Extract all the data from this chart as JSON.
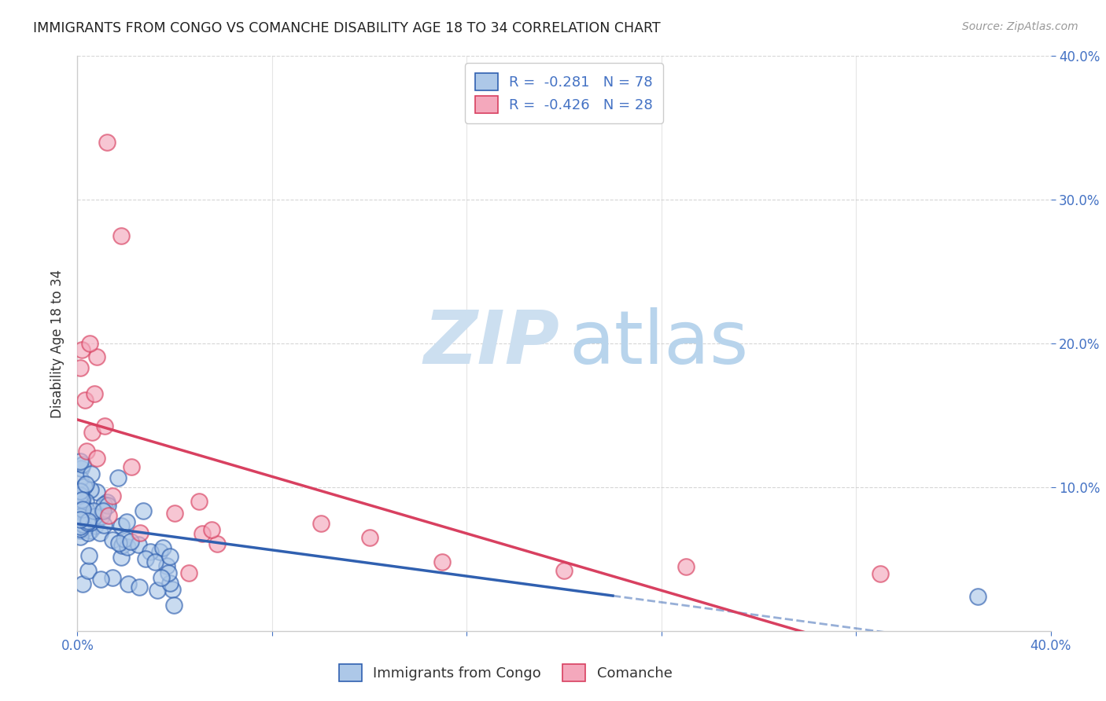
{
  "title": "IMMIGRANTS FROM CONGO VS COMANCHE DISABILITY AGE 18 TO 34 CORRELATION CHART",
  "source": "Source: ZipAtlas.com",
  "ylabel": "Disability Age 18 to 34",
  "legend_label_congo": "Immigrants from Congo",
  "legend_label_comanche": "Comanche",
  "r_congo": -0.281,
  "n_congo": 78,
  "r_comanche": -0.426,
  "n_comanche": 28,
  "xlim": [
    0.0,
    0.4
  ],
  "ylim": [
    0.0,
    0.4
  ],
  "color_congo": "#adc8e8",
  "color_comanche": "#f4a8bc",
  "color_congo_line": "#3060b0",
  "color_comanche_line": "#d84060",
  "color_text_blue": "#4472c4",
  "color_axis": "#cccccc",
  "background_color": "#ffffff"
}
